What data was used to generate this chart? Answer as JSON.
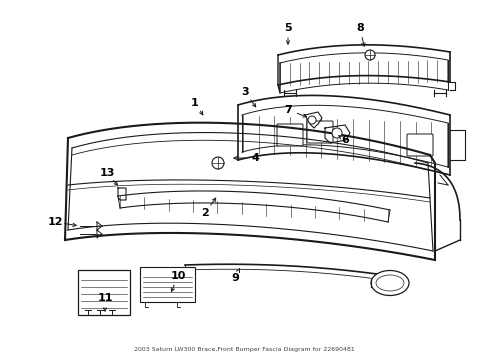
{
  "title": "2003 Saturn LW300 Brace,Front Bumper Fascia Diagram for 22690481",
  "bg_color": "#ffffff",
  "line_color": "#1a1a1a",
  "text_color": "#000000",
  "fig_width": 4.89,
  "fig_height": 3.6,
  "dpi": 100
}
